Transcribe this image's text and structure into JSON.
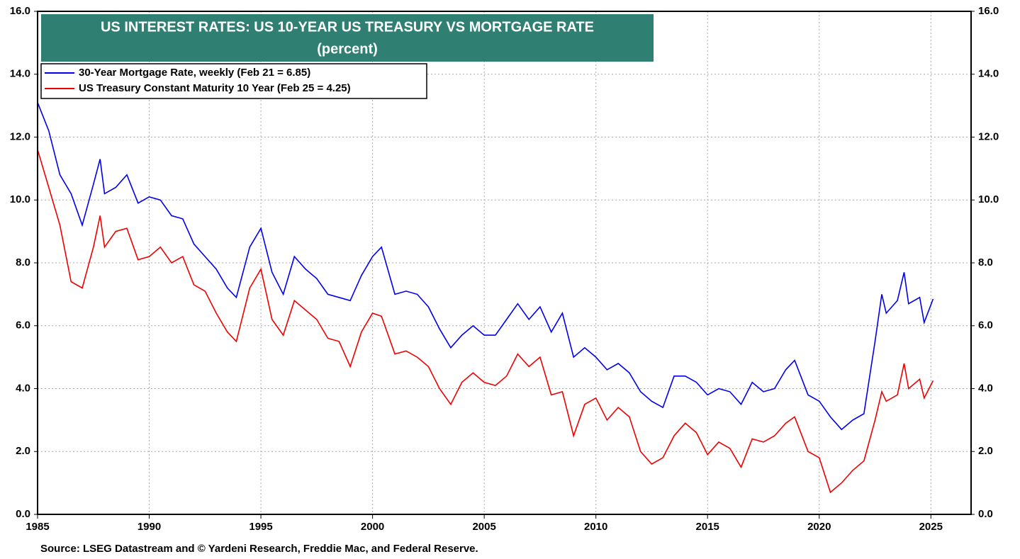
{
  "chart_data": {
    "type": "line",
    "title": "US INTEREST RATES: US 10-YEAR US TREASURY VS MORTGAGE RATE",
    "subtitle": "(percent)",
    "source": "Source: LSEG Datastream and © Yardeni Research, Freddie Mac, and Federal Reserve.",
    "x": [
      1985.0,
      1985.5,
      1986.0,
      1986.5,
      1987.0,
      1987.5,
      1987.8,
      1988.0,
      1988.5,
      1989.0,
      1989.5,
      1990.0,
      1990.5,
      1991.0,
      1991.5,
      1992.0,
      1992.5,
      1993.0,
      1993.5,
      1993.9,
      1994.5,
      1995.0,
      1995.5,
      1996.0,
      1996.5,
      1997.0,
      1997.5,
      1998.0,
      1998.5,
      1999.0,
      1999.5,
      2000.0,
      2000.4,
      2001.0,
      2001.5,
      2002.0,
      2002.5,
      2003.0,
      2003.5,
      2004.0,
      2004.5,
      2005.0,
      2005.5,
      2006.0,
      2006.5,
      2007.0,
      2007.5,
      2008.0,
      2008.5,
      2009.0,
      2009.5,
      2010.0,
      2010.5,
      2011.0,
      2011.5,
      2012.0,
      2012.5,
      2013.0,
      2013.5,
      2014.0,
      2014.5,
      2015.0,
      2015.5,
      2016.0,
      2016.5,
      2017.0,
      2017.5,
      2018.0,
      2018.5,
      2018.9,
      2019.5,
      2020.0,
      2020.5,
      2021.0,
      2021.5,
      2022.0,
      2022.5,
      2022.8,
      2023.0,
      2023.5,
      2023.8,
      2024.0,
      2024.5,
      2024.7,
      2025.1
    ],
    "series": [
      {
        "name": "30-Year Mortgage Rate, weekly (Feb 21 = 6.85)",
        "color": "#0000ee",
        "values": [
          13.1,
          12.2,
          10.8,
          10.2,
          9.2,
          10.5,
          11.3,
          10.2,
          10.4,
          10.8,
          9.9,
          10.1,
          10.0,
          9.5,
          9.4,
          8.6,
          8.2,
          7.8,
          7.2,
          6.9,
          8.5,
          9.1,
          7.7,
          7.0,
          8.2,
          7.8,
          7.5,
          7.0,
          6.9,
          6.8,
          7.6,
          8.2,
          8.5,
          7.0,
          7.1,
          7.0,
          6.6,
          5.9,
          5.3,
          5.7,
          6.0,
          5.7,
          5.7,
          6.2,
          6.7,
          6.2,
          6.6,
          5.8,
          6.4,
          5.0,
          5.3,
          5.0,
          4.6,
          4.8,
          4.5,
          3.9,
          3.6,
          3.4,
          4.4,
          4.4,
          4.2,
          3.8,
          4.0,
          3.9,
          3.5,
          4.2,
          3.9,
          4.0,
          4.6,
          4.9,
          3.8,
          3.6,
          3.1,
          2.7,
          3.0,
          3.2,
          5.5,
          7.0,
          6.4,
          6.8,
          7.7,
          6.7,
          6.9,
          6.1,
          6.85
        ]
      },
      {
        "name": "US Treasury Constant Maturity 10 Year (Feb 25 = 4.25)",
        "color": "#ee0000",
        "values": [
          11.6,
          10.4,
          9.2,
          7.4,
          7.2,
          8.5,
          9.5,
          8.5,
          9.0,
          9.1,
          8.1,
          8.2,
          8.5,
          8.0,
          8.2,
          7.3,
          7.1,
          6.4,
          5.8,
          5.5,
          7.2,
          7.8,
          6.2,
          5.7,
          6.8,
          6.5,
          6.2,
          5.6,
          5.5,
          4.7,
          5.8,
          6.4,
          6.3,
          5.1,
          5.2,
          5.0,
          4.7,
          4.0,
          3.5,
          4.2,
          4.5,
          4.2,
          4.1,
          4.4,
          5.1,
          4.7,
          5.0,
          3.8,
          3.9,
          2.5,
          3.5,
          3.7,
          3.0,
          3.4,
          3.1,
          2.0,
          1.6,
          1.8,
          2.5,
          2.9,
          2.6,
          1.9,
          2.3,
          2.1,
          1.5,
          2.4,
          2.3,
          2.5,
          2.9,
          3.1,
          2.0,
          1.8,
          0.7,
          1.0,
          1.4,
          1.7,
          3.0,
          3.9,
          3.6,
          3.8,
          4.8,
          4.0,
          4.3,
          3.7,
          4.25
        ]
      }
    ],
    "xlim": [
      1985,
      2026.8
    ],
    "xticks": [
      1985,
      1990,
      1995,
      2000,
      2005,
      2010,
      2015,
      2020,
      2025
    ],
    "ylim": [
      0,
      16
    ],
    "yticks": [
      {
        "value": 0,
        "label": "0.0"
      },
      {
        "value": 2,
        "label": "2.0"
      },
      {
        "value": 4,
        "label": "4.0"
      },
      {
        "value": 6,
        "label": "6.0"
      },
      {
        "value": 8,
        "label": "8.0"
      },
      {
        "value": 10,
        "label": "10.0"
      },
      {
        "value": 12,
        "label": "12.0"
      },
      {
        "value": 14,
        "label": "14.0"
      },
      {
        "value": 16,
        "label": "16.0"
      }
    ],
    "grid": true,
    "legend": "upper left",
    "title_background": "#2f7f72"
  }
}
